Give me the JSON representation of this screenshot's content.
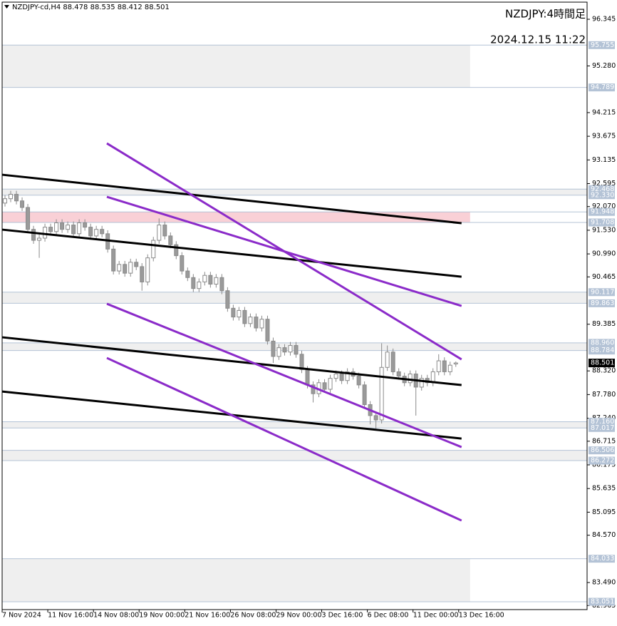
{
  "chart_data": {
    "type": "candlestick",
    "title": "NZDJPY-cd,H4  88.478 88.535 88.412 88.501",
    "subtitle": "NZDJPY:4時間足",
    "timestamp": "2024.12.15 11:22",
    "xlim": [
      0,
      205
    ],
    "ylim": [
      82.872,
      96.736
    ],
    "xticks": [
      {
        "value": 0,
        "label": "7 Nov 2024"
      },
      {
        "value": 16,
        "label": "11 Nov 16:00"
      },
      {
        "value": 32,
        "label": "14 Nov 08:00"
      },
      {
        "value": 48,
        "label": "19 Nov 00:00"
      },
      {
        "value": 64,
        "label": "21 Nov 16:00"
      },
      {
        "value": 80,
        "label": "26 Nov 08:00"
      },
      {
        "value": 96,
        "label": "29 Nov 00:00"
      },
      {
        "value": 112,
        "label": "3 Dec 16:00"
      },
      {
        "value": 128,
        "label": "6 Dec 08:00"
      },
      {
        "value": 144,
        "label": "11 Dec 00:00"
      },
      {
        "value": 160,
        "label": "13 Dec 16:00"
      }
    ],
    "yticks": [
      96.345,
      {
        "value": 95.28,
        "label": "95.280"
      },
      94.215,
      93.675,
      93.135,
      92.595,
      {
        "value": 92.07,
        "label": "92.070"
      },
      {
        "value": 91.53,
        "label": "91.530"
      },
      {
        "value": 90.99,
        "label": "90.990"
      },
      90.465,
      89.385,
      {
        "value": 88.32,
        "label": "88.320"
      },
      {
        "value": 87.78,
        "label": "87.780"
      },
      {
        "value": 87.24,
        "label": "87.240"
      },
      86.715,
      86.175,
      85.635,
      85.095,
      {
        "value": 84.57,
        "label": "84.570"
      },
      {
        "value": 83.49,
        "label": "83.490"
      },
      82.965
    ],
    "up_color": "#ffffff",
    "down_color": "#9a9a9a",
    "wick_color": "#8a8a8a",
    "x": [
      1,
      3,
      5,
      7,
      9,
      11,
      13,
      15,
      17,
      19,
      21,
      23,
      25,
      27,
      29,
      31,
      33,
      35,
      37,
      39,
      41,
      43,
      45,
      47,
      49,
      51,
      53,
      55,
      57,
      59,
      61,
      63,
      65,
      67,
      69,
      71,
      73,
      75,
      77,
      79,
      81,
      83,
      85,
      87,
      89,
      91,
      93,
      95,
      97,
      99,
      101,
      103,
      105,
      107,
      109,
      111,
      113,
      115,
      117,
      119,
      121,
      123,
      125,
      127,
      129,
      131,
      133,
      135,
      137,
      139,
      141,
      143,
      145,
      147,
      149,
      151,
      153,
      155,
      157,
      159
    ],
    "open": [
      92.15,
      92.25,
      92.35,
      92.2,
      92.05,
      91.55,
      91.3,
      91.35,
      91.6,
      91.5,
      91.7,
      91.55,
      91.65,
      91.45,
      91.7,
      91.6,
      91.4,
      91.55,
      91.45,
      91.1,
      90.6,
      90.75,
      90.55,
      90.8,
      90.7,
      90.35,
      90.9,
      91.3,
      91.65,
      91.4,
      91.2,
      90.95,
      90.6,
      90.45,
      90.2,
      90.35,
      90.5,
      90.3,
      90.45,
      90.15,
      89.75,
      89.55,
      89.7,
      89.4,
      89.55,
      89.3,
      89.5,
      89.0,
      88.65,
      88.85,
      88.75,
      88.9,
      88.7,
      88.35,
      88.0,
      87.8,
      88.05,
      87.9,
      88.15,
      88.25,
      88.1,
      88.3,
      88.2,
      88.0,
      87.55,
      87.3,
      87.2,
      88.4,
      88.75,
      88.3,
      88.2,
      88.05,
      88.25,
      87.95,
      88.15,
      88.05,
      88.3,
      88.55,
      88.3,
      88.478
    ],
    "high": [
      92.33,
      92.43,
      92.43,
      92.28,
      92.13,
      91.63,
      91.43,
      91.68,
      91.68,
      91.78,
      91.78,
      91.73,
      91.73,
      91.78,
      91.78,
      91.68,
      91.63,
      91.63,
      91.53,
      91.18,
      90.83,
      90.83,
      90.88,
      90.88,
      90.78,
      90.98,
      91.38,
      91.8,
      91.73,
      91.48,
      91.28,
      91.03,
      90.68,
      90.53,
      90.43,
      90.58,
      90.58,
      90.53,
      90.53,
      90.23,
      89.83,
      89.78,
      89.78,
      89.63,
      89.63,
      89.58,
      89.58,
      89.08,
      88.93,
      88.93,
      88.98,
      88.98,
      88.78,
      88.43,
      88.08,
      88.13,
      88.13,
      88.23,
      88.33,
      88.33,
      88.38,
      88.38,
      88.28,
      88.08,
      87.63,
      87.38,
      88.95,
      88.9,
      88.83,
      88.38,
      88.28,
      88.33,
      88.33,
      88.23,
      88.23,
      88.38,
      88.7,
      88.63,
      88.53,
      88.535
    ],
    "low": [
      92.07,
      92.17,
      92.12,
      91.97,
      91.47,
      91.22,
      90.9,
      91.27,
      91.42,
      91.42,
      91.47,
      91.47,
      91.37,
      91.37,
      91.52,
      91.32,
      91.32,
      91.37,
      91.02,
      90.52,
      90.52,
      90.47,
      90.47,
      90.62,
      90.15,
      90.27,
      90.82,
      91.22,
      91.32,
      91.12,
      90.87,
      90.52,
      90.37,
      90.12,
      90.12,
      90.27,
      90.22,
      90.22,
      90.07,
      89.67,
      89.47,
      89.47,
      89.32,
      89.32,
      89.22,
      89.22,
      88.92,
      88.5,
      88.57,
      88.67,
      88.67,
      88.62,
      88.27,
      87.92,
      87.6,
      87.72,
      87.82,
      87.82,
      88.07,
      88.02,
      88.02,
      88.12,
      87.92,
      87.47,
      87.1,
      87.0,
      87.12,
      88.32,
      88.22,
      88.12,
      87.97,
      87.97,
      87.3,
      87.87,
      87.97,
      87.97,
      88.22,
      88.22,
      88.22,
      88.412
    ],
    "close": [
      92.25,
      92.35,
      92.2,
      92.05,
      91.55,
      91.3,
      91.35,
      91.6,
      91.5,
      91.7,
      91.55,
      91.65,
      91.45,
      91.7,
      91.6,
      91.4,
      91.55,
      91.45,
      91.1,
      90.6,
      90.75,
      90.55,
      90.8,
      90.7,
      90.35,
      90.9,
      91.3,
      91.65,
      91.4,
      91.2,
      90.95,
      90.6,
      90.45,
      90.2,
      90.35,
      90.5,
      90.3,
      90.45,
      90.15,
      89.75,
      89.55,
      89.7,
      89.4,
      89.55,
      89.3,
      89.5,
      89.0,
      88.65,
      88.85,
      88.75,
      88.9,
      88.7,
      88.35,
      88.0,
      87.8,
      88.05,
      87.9,
      88.15,
      88.25,
      88.1,
      88.3,
      88.2,
      88.0,
      87.55,
      87.3,
      87.2,
      88.4,
      88.75,
      88.3,
      88.2,
      88.05,
      88.25,
      87.95,
      88.15,
      88.05,
      88.3,
      88.55,
      88.3,
      88.45,
      88.501
    ],
    "last_price": 88.501,
    "zones": [
      {
        "from": 95.755,
        "to": 94.789,
        "xend": 164,
        "color": "#efefef"
      },
      {
        "from": 92.468,
        "to": 92.33,
        "xend": 205,
        "color": "#efefef"
      },
      {
        "from": 91.948,
        "to": 91.708,
        "xend": 164,
        "color": "#f9d0d6"
      },
      {
        "from": 90.117,
        "to": 89.863,
        "xend": 205,
        "color": "#efefef"
      },
      {
        "from": 88.96,
        "to": 88.784,
        "xend": 205,
        "color": "#efefef"
      },
      {
        "from": 87.16,
        "to": 87.017,
        "xend": 205,
        "color": "#efefef"
      },
      {
        "from": 86.506,
        "to": 86.272,
        "xend": 205,
        "color": "#efefef"
      },
      {
        "from": 84.033,
        "to": 83.051,
        "xend": 164,
        "color": "#efefef"
      }
    ],
    "levels": [
      95.755,
      94.789,
      92.468,
      {
        "value": 92.33,
        "label": "92.330"
      },
      91.948,
      91.708,
      90.117,
      89.863,
      {
        "value": 88.96,
        "label": "88.960"
      },
      88.784,
      {
        "value": 87.16,
        "label": "87.160"
      },
      87.017,
      86.506,
      86.272,
      84.033,
      83.051
    ],
    "lines": [
      {
        "x": [
          0,
          161
        ],
        "y": [
          92.797,
          91.691
        ],
        "color": "#000000"
      },
      {
        "x": [
          0,
          161
        ],
        "y": [
          91.544,
          90.47
        ],
        "color": "#000000"
      },
      {
        "x": [
          0,
          161
        ],
        "y": [
          89.087,
          87.997
        ],
        "color": "#000000"
      },
      {
        "x": [
          0,
          161
        ],
        "y": [
          87.85,
          86.776
        ],
        "color": "#000000"
      },
      {
        "x": [
          36.7,
          161
        ],
        "y": [
          93.513,
          88.583
        ],
        "color": "#8b2bc9"
      },
      {
        "x": [
          36.7,
          161
        ],
        "y": [
          92.293,
          89.803
        ],
        "color": "#8b2bc9"
      },
      {
        "x": [
          36.7,
          161
        ],
        "y": [
          89.852,
          86.581
        ],
        "color": "#8b2bc9"
      },
      {
        "x": [
          36.7,
          161
        ],
        "y": [
          88.615,
          84.905
        ],
        "color": "#8b2bc9"
      }
    ]
  }
}
